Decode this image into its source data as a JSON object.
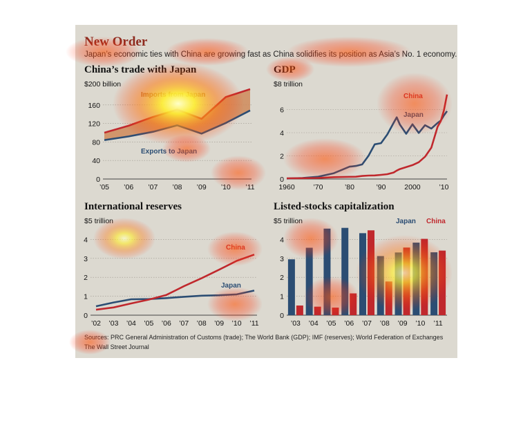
{
  "header": {
    "title": "New Order",
    "subtitle": "Japan’s economic ties with China are growing fast as China solidifies its position as Asia’s No. 1 economy."
  },
  "footer": {
    "sources": "Sources: PRC General Administration of Customs (trade); The World Bank (GDP); IMF (reserves); World Federation of Exchanges",
    "credit": "The Wall Street Journal"
  },
  "colors": {
    "china": "#c0282d",
    "japan": "#2b4d73",
    "fill": "#cf8a5a",
    "grid": "#9a968c",
    "background": "#dcd9d0"
  },
  "chart_data": [
    {
      "type": "area",
      "title": "China’s trade with Japan",
      "unit_label": "$200 billion",
      "x": [
        "’05",
        "’06",
        "’07",
        "’08",
        "’09",
        "’10",
        "’11"
      ],
      "ylim": [
        0,
        200
      ],
      "yticks": [
        0,
        40,
        80,
        120,
        160
      ],
      "grid": true,
      "series": [
        {
          "name": "Imports from Japan",
          "values": [
            100,
            115,
            134,
            150,
            130,
            177,
            194
          ]
        },
        {
          "name": "Exports to Japan",
          "values": [
            84,
            92,
            102,
            116,
            98,
            121,
            148
          ]
        }
      ]
    },
    {
      "type": "line",
      "title": "GDP",
      "unit_label": "$8 trillion",
      "x": [
        1960,
        1965,
        1970,
        1975,
        1980,
        1982,
        1984,
        1986,
        1988,
        1990,
        1992,
        1994,
        1995,
        1996,
        1998,
        2000,
        2002,
        2004,
        2006,
        2008,
        2009,
        2010,
        2011
      ],
      "xticks": [
        "1960",
        "’70",
        "’80",
        "’90",
        "2000",
        "’10"
      ],
      "ylim": [
        0,
        8
      ],
      "yticks": [
        0,
        2,
        4,
        6
      ],
      "grid": true,
      "series": [
        {
          "name": "China",
          "values": [
            0.06,
            0.07,
            0.09,
            0.16,
            0.19,
            0.2,
            0.26,
            0.3,
            0.31,
            0.36,
            0.42,
            0.56,
            0.73,
            0.86,
            1.03,
            1.2,
            1.45,
            1.93,
            2.71,
            4.52,
            4.99,
            5.93,
            7.3
          ]
        },
        {
          "name": "Japan",
          "values": [
            0.04,
            0.09,
            0.2,
            0.5,
            1.07,
            1.13,
            1.26,
            2.0,
            3.0,
            3.1,
            3.85,
            4.85,
            5.33,
            4.7,
            3.91,
            4.73,
            3.98,
            4.65,
            4.36,
            4.85,
            5.04,
            5.49,
            5.87
          ]
        }
      ]
    },
    {
      "type": "line",
      "title": "International reserves",
      "unit_label": "$5 trillion",
      "x": [
        "’02",
        "’03",
        "’04",
        "’05",
        "’06",
        "’07",
        "’08",
        "’09",
        "’10",
        "’11"
      ],
      "ylim": [
        0,
        5
      ],
      "yticks": [
        0,
        1,
        2,
        3,
        4
      ],
      "grid": true,
      "series": [
        {
          "name": "China",
          "values": [
            0.29,
            0.41,
            0.62,
            0.82,
            1.07,
            1.53,
            1.95,
            2.4,
            2.87,
            3.2
          ]
        },
        {
          "name": "Japan",
          "values": [
            0.47,
            0.67,
            0.84,
            0.85,
            0.9,
            0.97,
            1.03,
            1.05,
            1.1,
            1.3
          ]
        }
      ]
    },
    {
      "type": "bar",
      "title": "Listed-stocks capitalization",
      "unit_label": "$5 trillion",
      "categories": [
        "’03",
        "’04",
        "’05",
        "’06",
        "’07",
        "’08",
        "’09",
        "’10",
        "’11"
      ],
      "ylim": [
        0,
        5
      ],
      "yticks": [
        0,
        1,
        2,
        3,
        4
      ],
      "grid": true,
      "series": [
        {
          "name": "Japan",
          "values": [
            2.95,
            3.56,
            4.57,
            4.61,
            4.33,
            3.12,
            3.31,
            3.83,
            3.32
          ]
        },
        {
          "name": "China",
          "values": [
            0.51,
            0.45,
            0.4,
            1.15,
            4.48,
            1.78,
            3.57,
            4.03,
            3.41
          ]
        }
      ]
    }
  ]
}
